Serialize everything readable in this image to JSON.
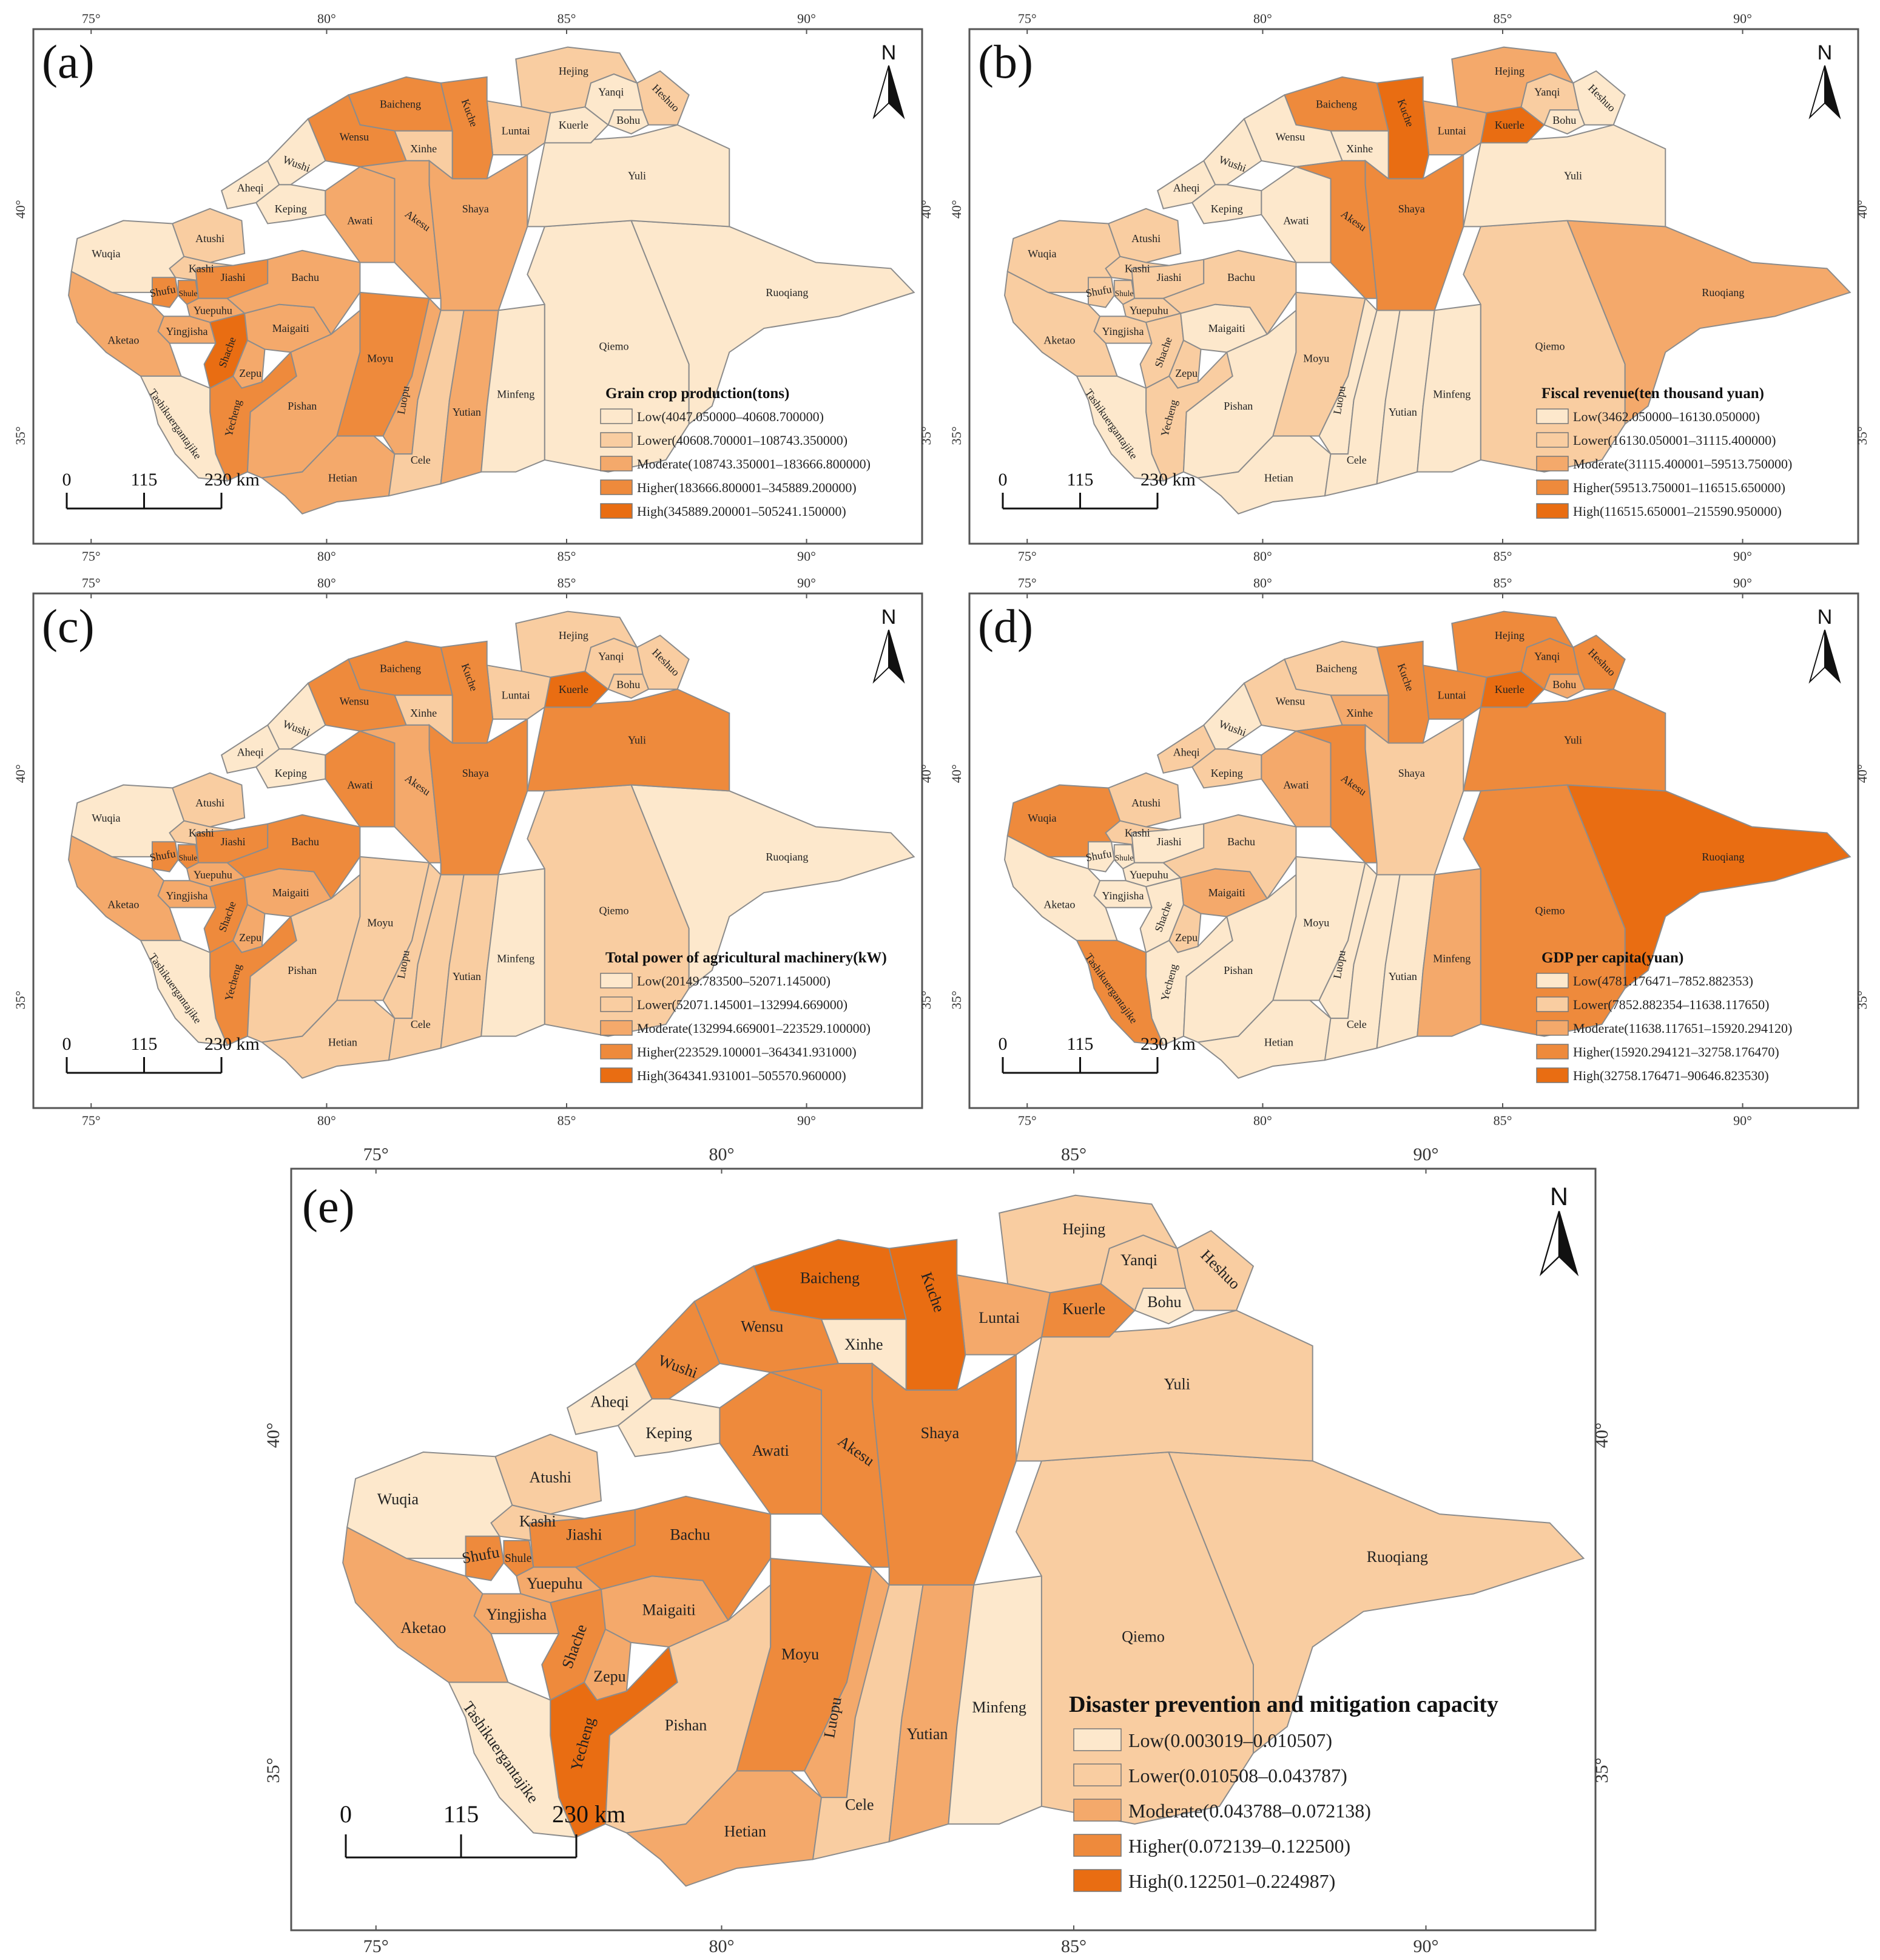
{
  "palette": {
    "Low": "#fde8cc",
    "Lower": "#f9cda1",
    "Moderate": "#f4a96b",
    "Higher": "#ee8a3c",
    "High": "#e96d12"
  },
  "class_names": [
    "Low",
    "Lower",
    "Moderate",
    "Higher",
    "High"
  ],
  "axes": {
    "lon_ticks": [
      "75°",
      "80°",
      "85°",
      "90°"
    ],
    "lat_ticks": [
      "40°",
      "35°"
    ]
  },
  "scale_bar": {
    "labels": [
      "0",
      "115",
      "230 km"
    ]
  },
  "north": "N",
  "panels": [
    {
      "letter": "(a)",
      "legend_title": "Grain crop production(tons)",
      "legend": [
        "Low(4047.050000–40608.700000)",
        "Lower(40608.700001–108743.350000)",
        "Moderate(108743.350001–183666.800000)",
        "Higher(183666.800001–345889.200000)",
        "High(345889.200001–505241.150000)"
      ],
      "classes": {
        "Wuqia": "Low",
        "Atushi": "Lower",
        "Kashi": "Lower",
        "Shufu": "Higher",
        "Shule": "Higher",
        "Jiashi": "Higher",
        "Yuepuhu": "Moderate",
        "Yingjisha": "Moderate",
        "Aketao": "Moderate",
        "Shache": "High",
        "Zepu": "Moderate",
        "Yecheng": "Higher",
        "Tashikuerganta": "Low",
        "Maigaiti": "Moderate",
        "Bachu": "Moderate",
        "Pishan": "Moderate",
        "Hetian": "Moderate",
        "Moyu": "Higher",
        "Luopu": "Moderate",
        "Cele": "Lower",
        "Yutian": "Moderate",
        "Minfeng": "Low",
        "Qiemo": "Low",
        "Ruoqiang": "Low",
        "Yuli": "Low",
        "Kuerle": "Low",
        "Bohu": "Low",
        "Heshuo": "Lower",
        "Yanqi": "Low",
        "Hejing": "Lower",
        "Luntai": "Lower",
        "Kuche": "Higher",
        "Xinhe": "Lower",
        "Baicheng": "Higher",
        "Wensu": "Higher",
        "Wushi": "Low",
        "Aheqi": "Low",
        "Keping": "Low",
        "Awati": "Moderate",
        "Akesu": "Moderate",
        "Shaya": "Moderate"
      }
    },
    {
      "letter": "(b)",
      "legend_title": "Fiscal revenue(ten thousand yuan)",
      "legend": [
        "Low(3462.050000–16130.050000)",
        "Lower(16130.050001–31115.400000)",
        "Moderate(31115.400001–59513.750000)",
        "Higher(59513.750001–116515.650000)",
        "High(116515.650001–215590.950000)"
      ],
      "classes": {
        "Wuqia": "Lower",
        "Atushi": "Lower",
        "Kashi": "Lower",
        "Shufu": "Lower",
        "Shule": "Lower",
        "Jiashi": "Lower",
        "Yuepuhu": "Lower",
        "Yingjisha": "Lower",
        "Aketao": "Lower",
        "Shache": "Lower",
        "Zepu": "Lower",
        "Yecheng": "Lower",
        "Tashikuerganta": "Low",
        "Maigaiti": "Low",
        "Bachu": "Lower",
        "Pishan": "Low",
        "Hetian": "Low",
        "Moyu": "Lower",
        "Luopu": "Low",
        "Cele": "Low",
        "Yutian": "Low",
        "Minfeng": "Low",
        "Qiemo": "Lower",
        "Ruoqiang": "Moderate",
        "Yuli": "Low",
        "Kuerle": "High",
        "Bohu": "Low",
        "Heshuo": "Low",
        "Yanqi": "Lower",
        "Hejing": "Moderate",
        "Luntai": "Moderate",
        "Kuche": "High",
        "Xinhe": "Low",
        "Baicheng": "Higher",
        "Wensu": "Low",
        "Wushi": "Low",
        "Aheqi": "Low",
        "Keping": "Low",
        "Awati": "Low",
        "Akesu": "Higher",
        "Shaya": "Higher"
      }
    },
    {
      "letter": "(c)",
      "legend_title": "Total power of agricultural machinery(kW)",
      "legend": [
        "Low(20149.783500–52071.145000)",
        "Lower(52071.145001–132994.669000)",
        "Moderate(132994.669001–223529.100000)",
        "Higher(223529.100001–364341.931000)",
        "High(364341.931001–505570.960000)"
      ],
      "classes": {
        "Wuqia": "Low",
        "Atushi": "Lower",
        "Kashi": "Lower",
        "Shufu": "Higher",
        "Shule": "Higher",
        "Jiashi": "Higher",
        "Yuepuhu": "Moderate",
        "Yingjisha": "Moderate",
        "Aketao": "Moderate",
        "Shache": "Higher",
        "Zepu": "Moderate",
        "Yecheng": "Higher",
        "Tashikuerganta": "Low",
        "Maigaiti": "Moderate",
        "Bachu": "Higher",
        "Pishan": "Lower",
        "Hetian": "Lower",
        "Moyu": "Lower",
        "Luopu": "Lower",
        "Cele": "Lower",
        "Yutian": "Lower",
        "Minfeng": "Low",
        "Qiemo": "Lower",
        "Ruoqiang": "Low",
        "Yuli": "Higher",
        "Kuerle": "High",
        "Bohu": "Lower",
        "Heshuo": "Lower",
        "Yanqi": "Lower",
        "Hejing": "Lower",
        "Luntai": "Lower",
        "Kuche": "Higher",
        "Xinhe": "Lower",
        "Baicheng": "Higher",
        "Wensu": "Higher",
        "Wushi": "Low",
        "Aheqi": "Low",
        "Keping": "Low",
        "Awati": "Higher",
        "Akesu": "Moderate",
        "Shaya": "Higher"
      }
    },
    {
      "letter": "(d)",
      "legend_title": "GDP per capita(yuan)",
      "legend": [
        "Low(4781.176471–7852.882353)",
        "Lower(7852.882354–11638.117650)",
        "Moderate(11638.117651–15920.294120)",
        "Higher(15920.294121–32758.176470)",
        "High(32758.176471–90646.823530)"
      ],
      "classes": {
        "Wuqia": "Higher",
        "Atushi": "Lower",
        "Kashi": "Lower",
        "Shufu": "Low",
        "Shule": "Low",
        "Jiashi": "Low",
        "Yuepuhu": "Low",
        "Yingjisha": "Low",
        "Aketao": "Low",
        "Shache": "Low",
        "Zepu": "Lower",
        "Yecheng": "Low",
        "Tashikuerganta": "Higher",
        "Maigaiti": "Moderate",
        "Bachu": "Lower",
        "Pishan": "Low",
        "Hetian": "Low",
        "Moyu": "Low",
        "Luopu": "Low",
        "Cele": "Low",
        "Yutian": "Low",
        "Minfeng": "Moderate",
        "Qiemo": "Higher",
        "Ruoqiang": "High",
        "Yuli": "Higher",
        "Kuerle": "High",
        "Bohu": "Moderate",
        "Heshuo": "Higher",
        "Yanqi": "Higher",
        "Hejing": "Higher",
        "Luntai": "Higher",
        "Kuche": "Higher",
        "Xinhe": "Moderate",
        "Baicheng": "Lower",
        "Wensu": "Lower",
        "Wushi": "Low",
        "Aheqi": "Lower",
        "Keping": "Lower",
        "Awati": "Moderate",
        "Akesu": "Higher",
        "Shaya": "Lower"
      }
    },
    {
      "letter": "(e)",
      "legend_title": "Disaster prevention and mitigation capacity",
      "legend": [
        "Low(0.003019–0.010507)",
        "Lower(0.010508–0.043787)",
        "Moderate(0.043788–0.072138)",
        "Higher(0.072139–0.122500)",
        "High(0.122501–0.224987)"
      ],
      "classes": {
        "Wuqia": "Low",
        "Atushi": "Lower",
        "Kashi": "Lower",
        "Shufu": "Higher",
        "Shule": "Higher",
        "Jiashi": "Higher",
        "Yuepuhu": "Moderate",
        "Yingjisha": "Moderate",
        "Aketao": "Moderate",
        "Shache": "Higher",
        "Zepu": "Moderate",
        "Yecheng": "High",
        "Tashikuerganta": "Low",
        "Maigaiti": "Moderate",
        "Bachu": "Higher",
        "Pishan": "Lower",
        "Hetian": "Moderate",
        "Moyu": "Higher",
        "Luopu": "Moderate",
        "Cele": "Lower",
        "Yutian": "Moderate",
        "Minfeng": "Low",
        "Qiemo": "Lower",
        "Ruoqiang": "Lower",
        "Yuli": "Lower",
        "Kuerle": "Higher",
        "Bohu": "Low",
        "Heshuo": "Lower",
        "Yanqi": "Lower",
        "Hejing": "Lower",
        "Luntai": "Moderate",
        "Kuche": "High",
        "Xinhe": "Low",
        "Baicheng": "High",
        "Wensu": "Higher",
        "Wushi": "Higher",
        "Aheqi": "Low",
        "Keping": "Low",
        "Awati": "Higher",
        "Akesu": "Higher",
        "Shaya": "Higher"
      }
    }
  ],
  "county_labels": {
    "Wuqia": "Wuqia",
    "Atushi": "Atushi",
    "Kashi": "Kashi",
    "Shufu": "Shufu",
    "Shule": "Shule",
    "Jiashi": "Jiashi",
    "Yuepuhu": "Yuepuhu",
    "Yingjisha": "Yingjisha",
    "Aketao": "Aketao",
    "Shache": "Shache",
    "Zepu": "Zepu",
    "Yecheng": "Yecheng",
    "Tashikuerganta": "Tashikuergantajike",
    "Maigaiti": "Maigaiti",
    "Bachu": "Bachu",
    "Pishan": "Pishan",
    "Hetian": "Hetian",
    "Moyu": "Moyu",
    "Luopu": "Luopu",
    "Cele": "Cele",
    "Yutian": "Yutian",
    "Minfeng": "Minfeng",
    "Qiemo": "Qiemo",
    "Ruoqiang": "Ruoqiang",
    "Yuli": "Yuli",
    "Kuerle": "Kuerle",
    "Bohu": "Bohu",
    "Heshuo": "Heshuo",
    "Yanqi": "Yanqi",
    "Hejing": "Hejing",
    "Luntai": "Luntai",
    "Kuche": "Kuche",
    "Xinhe": "Xinhe",
    "Baicheng": "Baicheng",
    "Wensu": "Wensu",
    "Wushi": "Wushi",
    "Aheqi": "Aheqi",
    "Keping": "Keping",
    "Awati": "Awati",
    "Akesu": "Akesu",
    "Shaya": "Shaya"
  }
}
